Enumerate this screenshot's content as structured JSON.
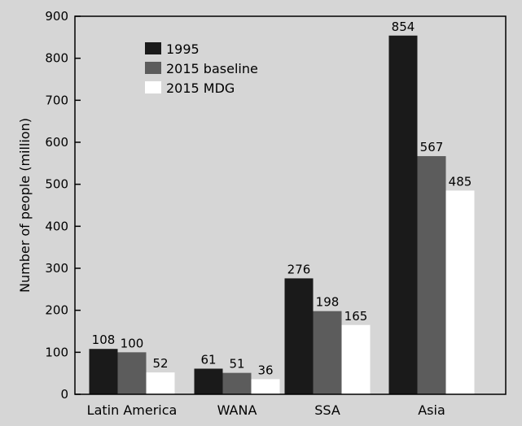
{
  "chart_data": {
    "type": "bar",
    "categories": [
      "Latin America",
      "WANA",
      "SSA",
      "Asia"
    ],
    "series": [
      {
        "name": "1995",
        "values": [
          108,
          61,
          276,
          854
        ],
        "color": "#1a1a1a"
      },
      {
        "name": "2015 baseline",
        "values": [
          100,
          51,
          198,
          567
        ],
        "color": "#5c5c5c"
      },
      {
        "name": "2015 MDG",
        "values": [
          52,
          36,
          165,
          485
        ],
        "color": "#ffffff"
      }
    ],
    "ylabel": "Number of people (million)",
    "xlabel": "",
    "title": "",
    "ylim": [
      0,
      900
    ],
    "yticks": [
      0,
      100,
      200,
      300,
      400,
      500,
      600,
      700,
      800,
      900
    ],
    "legend_position": "top-left",
    "grid": false,
    "data_labels": true
  }
}
